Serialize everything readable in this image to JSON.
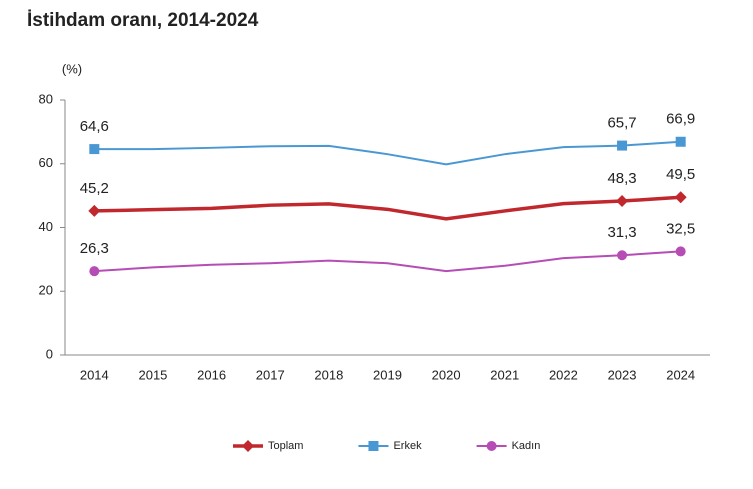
{
  "chart_data": {
    "type": "line",
    "title": "İstihdam oranı, 2014-2024",
    "y_label": "(%)",
    "categories": [
      "2014",
      "2015",
      "2016",
      "2017",
      "2018",
      "2019",
      "2020",
      "2021",
      "2022",
      "2023",
      "2024"
    ],
    "series": [
      {
        "name": "Toplam",
        "color": "#c0282d",
        "marker": "diamond",
        "width": 3.5,
        "values": [
          45.2,
          45.6,
          46.0,
          47.0,
          47.4,
          45.7,
          42.7,
          45.2,
          47.5,
          48.3,
          49.5
        ],
        "value_labels": [
          "45,2",
          null,
          null,
          null,
          null,
          null,
          null,
          null,
          null,
          "48,3",
          "49,5"
        ]
      },
      {
        "name": "Erkek",
        "color": "#4a98d3",
        "marker": "square",
        "width": 2,
        "values": [
          64.6,
          64.6,
          65.0,
          65.5,
          65.6,
          63.0,
          59.8,
          63.0,
          65.2,
          65.7,
          66.9
        ],
        "value_labels": [
          "64,6",
          null,
          null,
          null,
          null,
          null,
          null,
          null,
          null,
          "65,7",
          "66,9"
        ]
      },
      {
        "name": "Kadın",
        "color": "#b54db5",
        "marker": "circle",
        "width": 2,
        "values": [
          26.3,
          27.5,
          28.3,
          28.8,
          29.6,
          28.8,
          26.3,
          28.0,
          30.4,
          31.3,
          32.5
        ],
        "value_labels": [
          "26,3",
          null,
          null,
          null,
          null,
          null,
          null,
          null,
          null,
          "31,3",
          "32,5"
        ]
      }
    ],
    "ylim": [
      0,
      80
    ],
    "yticks": [
      0,
      20,
      40,
      60,
      80
    ],
    "legend": "bottom"
  }
}
